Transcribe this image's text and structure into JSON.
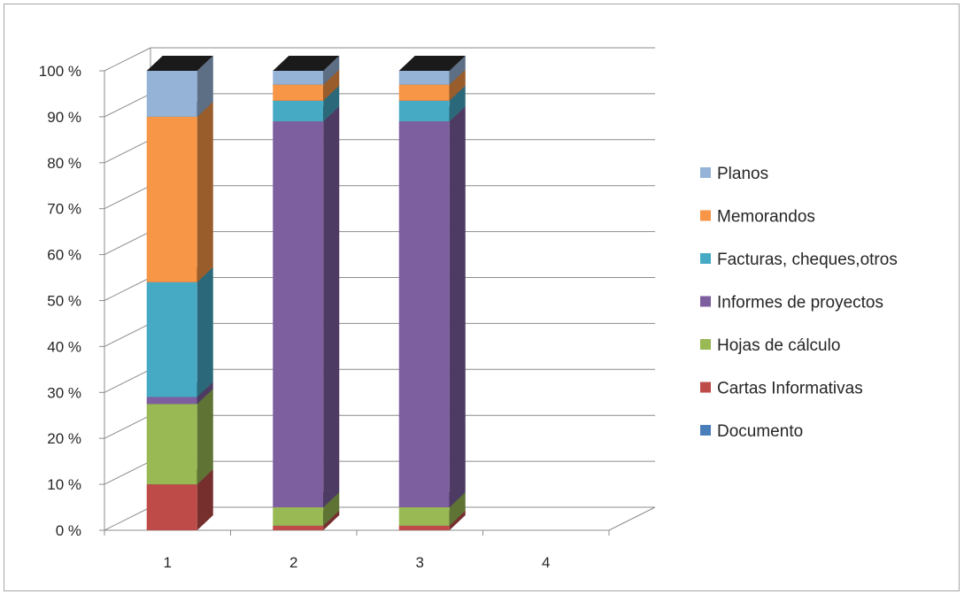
{
  "chart_data": {
    "type": "bar",
    "stacked": true,
    "percent_stacked": true,
    "three_d": true,
    "categories": [
      "1",
      "2",
      "3",
      "4"
    ],
    "y_ticks": [
      "0 %",
      "10 %",
      "20 %",
      "30 %",
      "40 %",
      "50 %",
      "60 %",
      "70 %",
      "80 %",
      "90 %",
      "100 %"
    ],
    "ylim": [
      0,
      100
    ],
    "grid": true,
    "legend_position": "right",
    "series": [
      {
        "name": "Documento",
        "color": "#4a7ebb",
        "values": [
          0,
          0,
          0,
          0
        ]
      },
      {
        "name": "Cartas Informativas",
        "color": "#be4b48",
        "values": [
          10,
          1,
          1,
          0
        ]
      },
      {
        "name": "Hojas de cálculo",
        "color": "#98b954",
        "values": [
          17.5,
          4,
          4,
          0
        ]
      },
      {
        "name": "Informes de proyectos",
        "color": "#7d5fa0",
        "values": [
          1.5,
          84,
          84,
          0
        ]
      },
      {
        "name": "Facturas, cheques,otros",
        "color": "#46aac5",
        "values": [
          25,
          4.5,
          4.5,
          0
        ]
      },
      {
        "name": "Memorandos",
        "color": "#f79646",
        "values": [
          36,
          3.5,
          3.5,
          0
        ]
      },
      {
        "name": "Planos",
        "color": "#95b3d7",
        "values": [
          10,
          3,
          3,
          0
        ]
      }
    ]
  }
}
